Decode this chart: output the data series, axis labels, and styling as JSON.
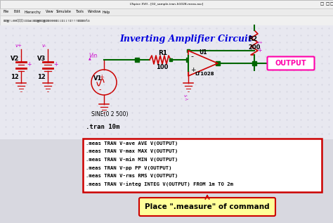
{
  "title": "Inverting Amplifier Circuit",
  "title_color": "#0000DD",
  "bg_color": "#E0E0E8",
  "meas_lines": [
    ".meas TRAN V-ave AVE V(OUTPUT)",
    ".meas TRAN V-max MAX V(OUTPUT)",
    ".meas TRAN V-min MIN V(OUTPUT)",
    ".meas TRAN V-pp PP V(OUTPUT)",
    ".meas TRAN V-rms RMS V(OUTPUT)",
    ".meas TRAN V-integ INTEG V(OUTPUT) FROM 1m TO 2m"
  ],
  "tran_text": ".tran 10m",
  "annotation": "Place \".measure\" of command",
  "output_label": "OUTPUT",
  "wire_color": "#006600",
  "comp_color": "#CC0000",
  "magenta": "#CC00CC",
  "meas_box_edge": "#CC0000",
  "annotation_bg": "#FFFF99",
  "annotation_border": "#CC0000",
  "titlebar_bg": "#F0F0F0",
  "menubar_bg": "#EBEBEB",
  "toolbar_bg": "#F0F0F0",
  "dot_color": "#AAAAAA",
  "output_box_color": "#FF00AA"
}
